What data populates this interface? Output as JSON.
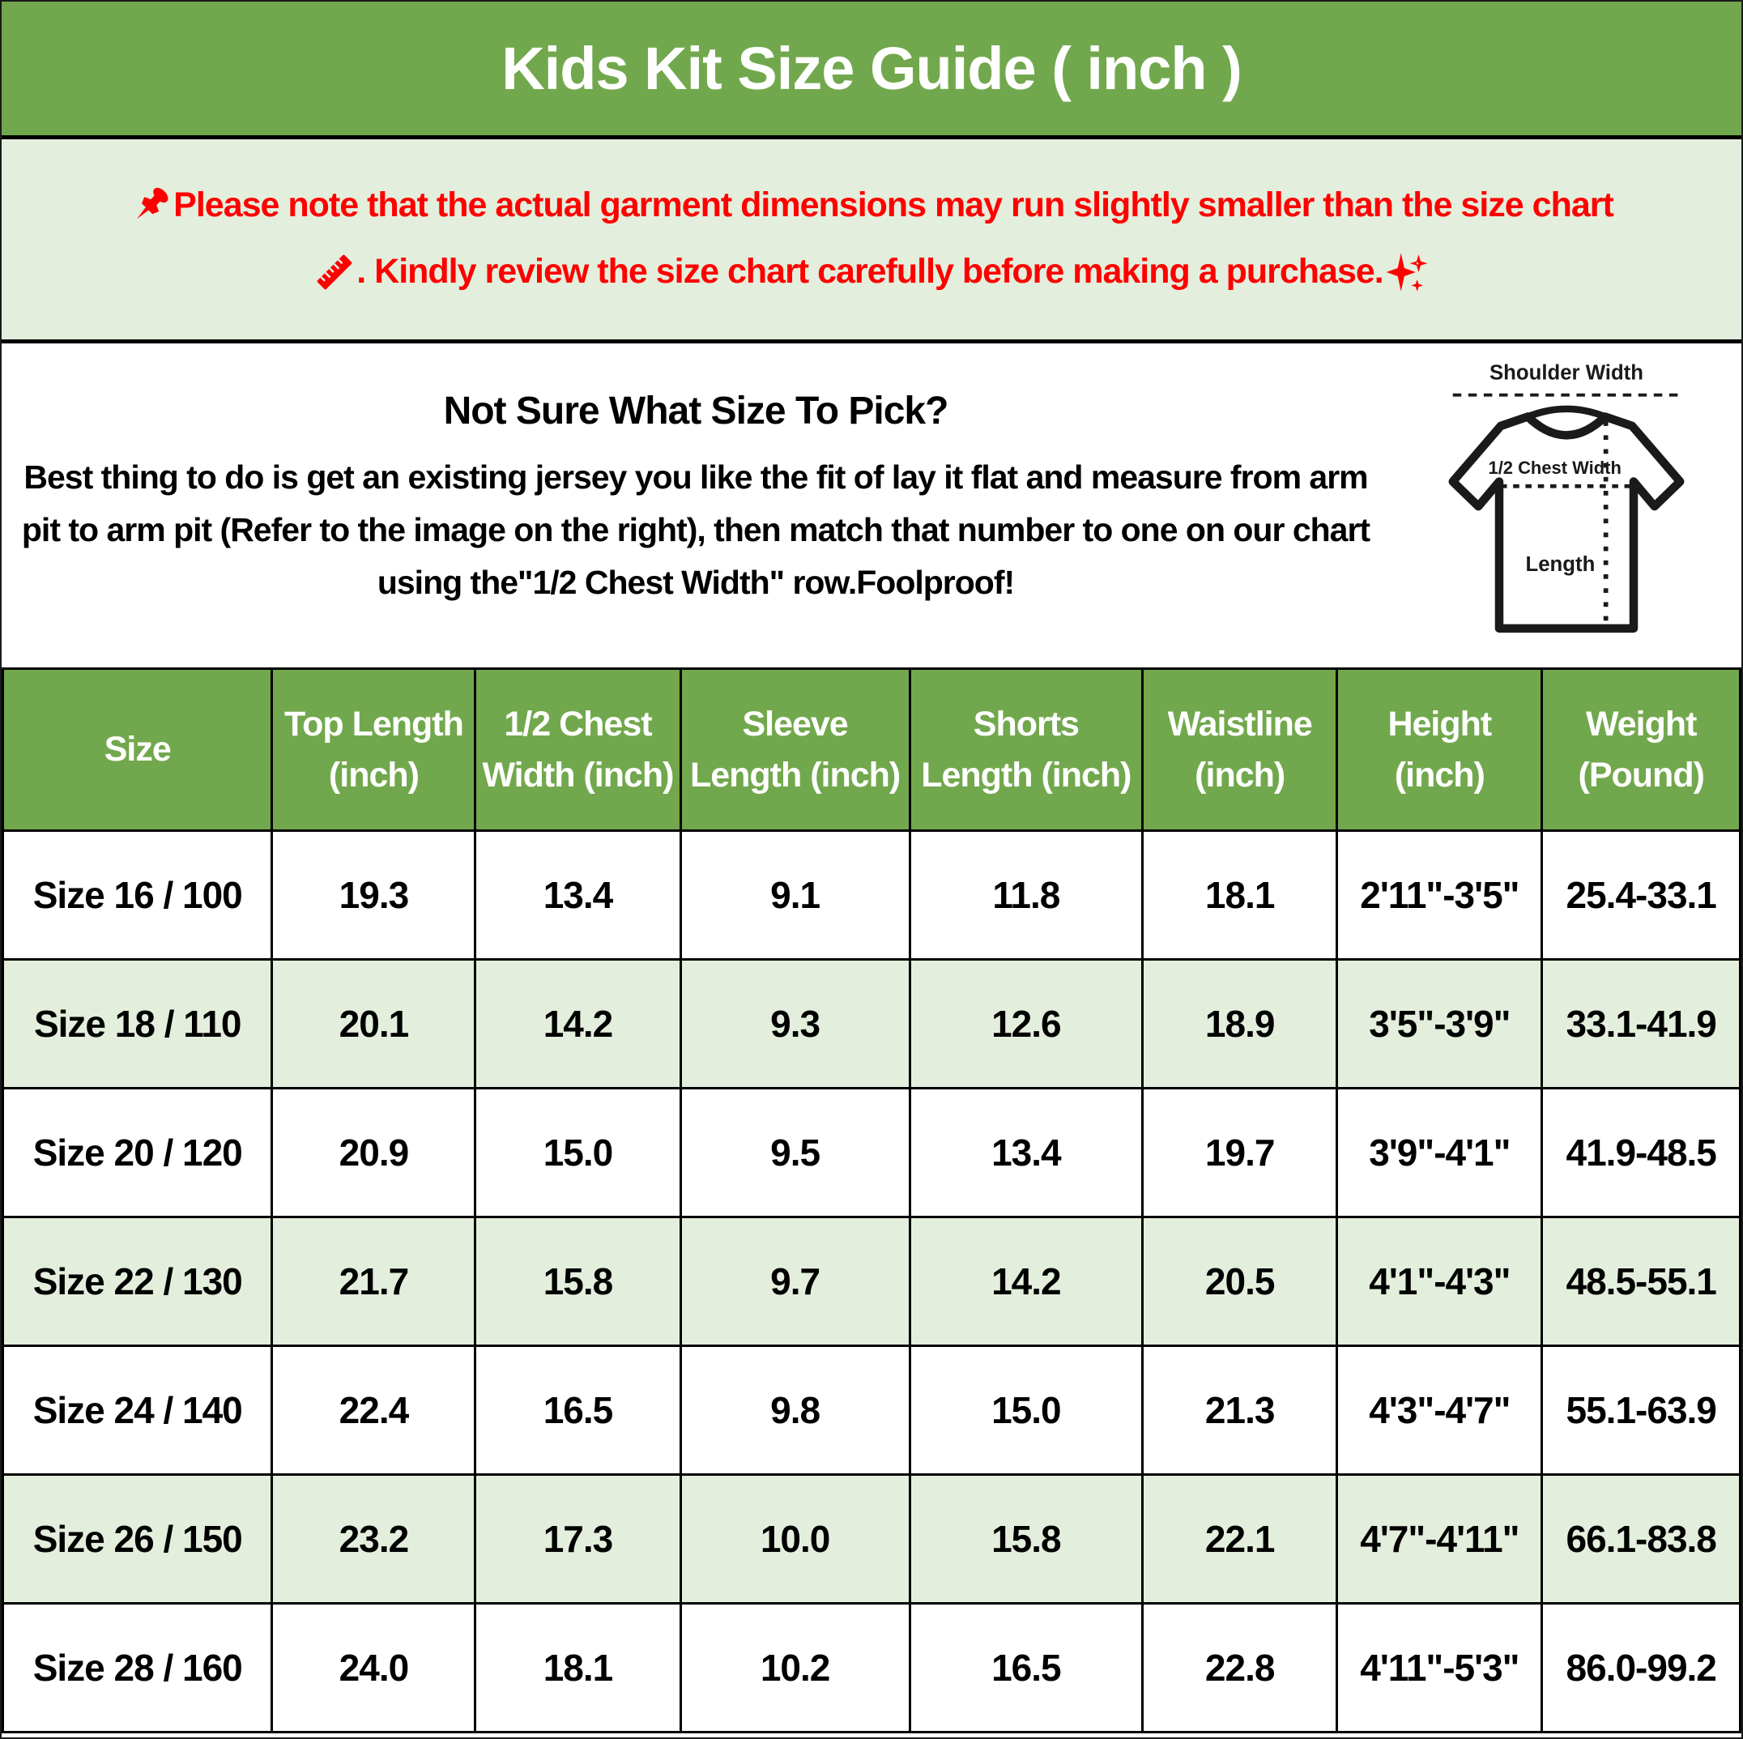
{
  "header": {
    "title": "Kids Kit Size Guide ( inch )"
  },
  "notice": {
    "line1": "Please note that the actual garment dimensions may run slightly smaller than the size chart",
    "line2": ". Kindly review the size chart carefully before making a purchase.",
    "icons": {
      "line1_prefix": "pushpin-icon",
      "line2_prefix": "ruler-icon",
      "line2_suffix": "sparkles-icon"
    }
  },
  "info": {
    "heading": "Not Sure What Size To Pick?",
    "body": "Best thing to do is get an existing jersey you like the fit of lay it flat and measure from arm pit to arm pit (Refer to the image on the right), then match that number to one on our chart using the\"1/2 Chest Width\" row.Foolproof!"
  },
  "diagram": {
    "shoulder_width_label": "Shoulder Width",
    "half_chest_width_label": "1/2 Chest Width",
    "length_label": "Length"
  },
  "table": {
    "columns": [
      {
        "line1": "Size",
        "line2": ""
      },
      {
        "line1": "Top Length",
        "line2": "(inch)"
      },
      {
        "line1": "1/2 Chest",
        "line2": "Width (inch)"
      },
      {
        "line1": "Sleeve",
        "line2": "Length (inch)"
      },
      {
        "line1": "Shorts",
        "line2": "Length (inch)"
      },
      {
        "line1": "Waistline",
        "line2": "(inch)"
      },
      {
        "line1": "Height",
        "line2": "(inch)"
      },
      {
        "line1": "Weight",
        "line2": "(Pound)"
      }
    ],
    "rows": [
      [
        "Size 16 / 100",
        "19.3",
        "13.4",
        "9.1",
        "11.8",
        "18.1",
        "2'11\"-3'5\"",
        "25.4-33.1"
      ],
      [
        "Size 18 / 110",
        "20.1",
        "14.2",
        "9.3",
        "12.6",
        "18.9",
        "3'5\"-3'9\"",
        "33.1-41.9"
      ],
      [
        "Size 20 / 120",
        "20.9",
        "15.0",
        "9.5",
        "13.4",
        "19.7",
        "3'9\"-4'1\"",
        "41.9-48.5"
      ],
      [
        "Size 22 / 130",
        "21.7",
        "15.8",
        "9.7",
        "14.2",
        "20.5",
        "4'1\"-4'3\"",
        "48.5-55.1"
      ],
      [
        "Size 24 / 140",
        "22.4",
        "16.5",
        "9.8",
        "15.0",
        "21.3",
        "4'3\"-4'7\"",
        "55.1-63.9"
      ],
      [
        "Size 26 / 150",
        "23.2",
        "17.3",
        "10.0",
        "15.8",
        "22.1",
        "4'7\"-4'11\"",
        "66.1-83.8"
      ],
      [
        "Size 28 / 160",
        "24.0",
        "18.1",
        "10.2",
        "16.5",
        "22.8",
        "4'11\"-5'3\"",
        "86.0-99.2"
      ]
    ]
  },
  "colors": {
    "header_green": "#72a84d",
    "row_green": "#e3efdc",
    "alert_red": "#ff0000",
    "border_black": "#000000",
    "header_text_white": "#ffffff"
  }
}
